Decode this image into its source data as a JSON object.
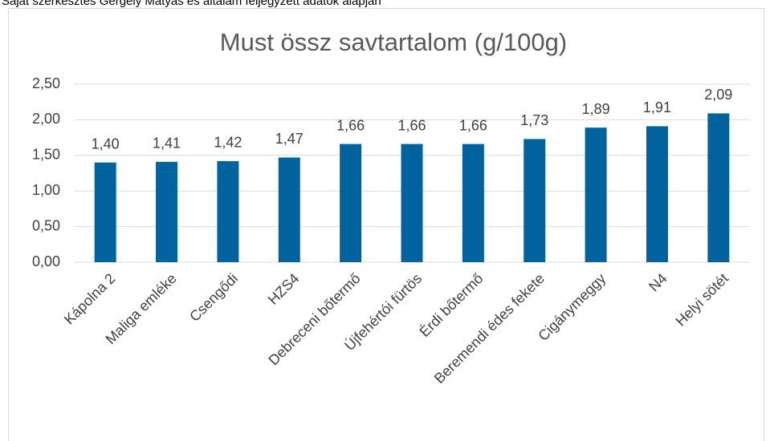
{
  "caption": "Saját szerkesztés Gergely Mátyás és általam feljegyzett adatok alapján",
  "chart_data": {
    "type": "bar",
    "title": "Must össz savtartalom (g/100g)",
    "categories": [
      "Kápolna 2",
      "Maliga emléke",
      "Csengődi",
      "HZS4",
      "Debreceni bőtermő",
      "Újfehértói fürtös",
      "Érdi bőtermő",
      "Beremendi édes fekete",
      "Cigánymeggy",
      "N4",
      "Helyi sötét"
    ],
    "values": [
      1.4,
      1.41,
      1.42,
      1.47,
      1.66,
      1.66,
      1.66,
      1.73,
      1.89,
      1.91,
      2.09
    ],
    "value_labels": [
      "1,40",
      "1,41",
      "1,42",
      "1,47",
      "1,66",
      "1,66",
      "1,66",
      "1,73",
      "1,89",
      "1,91",
      "2,09"
    ],
    "color": "#00639e",
    "ylim": [
      0,
      2.5
    ],
    "yticks": [
      {
        "value": 0,
        "label": "0,00"
      },
      {
        "value": 0.5,
        "label": "0,50"
      },
      {
        "value": 1,
        "label": "1,00"
      },
      {
        "value": 1.5,
        "label": "1,50"
      },
      {
        "value": 2,
        "label": "2,00"
      },
      {
        "value": 2.5,
        "label": "2,50"
      }
    ],
    "grid": true
  }
}
